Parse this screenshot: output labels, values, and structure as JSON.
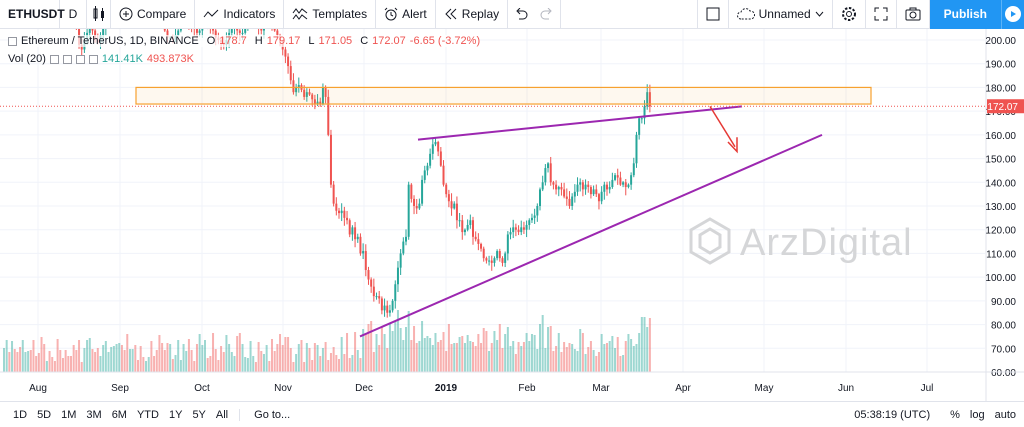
{
  "toolbar": {
    "symbol": "ETHUSDT",
    "interval": "D",
    "compare": "Compare",
    "indicators": "Indicators",
    "templates": "Templates",
    "alert": "Alert",
    "replay": "Replay",
    "layout_name": "Unnamed",
    "publish": "Publish"
  },
  "legend": {
    "title": "Ethereum / TetherUS, 1D, BINANCE",
    "open_label": "O",
    "open": "178.7",
    "high_label": "H",
    "high": "179.17",
    "low_label": "L",
    "low": "171.05",
    "close_label": "C",
    "close": "172.07",
    "change": "-6.65 (-3.72%)"
  },
  "volume_legend": {
    "label": "Vol (20)",
    "value1": "141.41K",
    "value2": "493.873K"
  },
  "watermark": "ArzDigital",
  "colors": {
    "up": "#26a69a",
    "down": "#ef5350",
    "trend": "#9c27b0",
    "zone": "#f7a12f",
    "arrow": "#e53935",
    "accent": "#2196f3"
  },
  "chart_data": {
    "type": "candlestick",
    "symbol": "ETHUSDT",
    "timeframe": "1D",
    "price_axis": {
      "min": 60,
      "max": 200,
      "ticks": [
        "200.00",
        "190.00",
        "180.00",
        "170.00",
        "160.00",
        "150.00",
        "140.00",
        "130.00",
        "120.00",
        "110.00",
        "100.00",
        "90.00",
        "80.00",
        "70.00",
        "60.00"
      ]
    },
    "last_price": "172.07",
    "time_axis": [
      "Aug",
      "Sep",
      "Oct",
      "Nov",
      "Dec",
      "2019",
      "Feb",
      "Mar",
      "Apr",
      "May",
      "Jun",
      "Jul"
    ],
    "closes": [
      280,
      284,
      281,
      283,
      280,
      278,
      276,
      279,
      282,
      285,
      283,
      279,
      274,
      270,
      262,
      258,
      260,
      257,
      255,
      252,
      250,
      245,
      240,
      232,
      226,
      220,
      212,
      205,
      198,
      196,
      200,
      203,
      206,
      204,
      200,
      199,
      202,
      205,
      209,
      212,
      212,
      214,
      220,
      226,
      221,
      218,
      216,
      220,
      224,
      223,
      221,
      219,
      217,
      220,
      221,
      219,
      216,
      214,
      211,
      207,
      204,
      201,
      201,
      200,
      202,
      204,
      206,
      208,
      209,
      207,
      206,
      205,
      203,
      204,
      207,
      209,
      206,
      205,
      204,
      201,
      200,
      199,
      198,
      200,
      203,
      205,
      206,
      204,
      203,
      203,
      206,
      208,
      210,
      212,
      209,
      205,
      204,
      206,
      208,
      207,
      206,
      204,
      202,
      199,
      196,
      193,
      189,
      183,
      178,
      180,
      181,
      179,
      176,
      178,
      177,
      175,
      173,
      174,
      173,
      180,
      176,
      160,
      139,
      131,
      128,
      127,
      128,
      125,
      124,
      118,
      121,
      116,
      117,
      110,
      111,
      103,
      99,
      96,
      92,
      92,
      91,
      86,
      88,
      85,
      86,
      90,
      97,
      104,
      110,
      115,
      117,
      139,
      133,
      130,
      129,
      131,
      141,
      145,
      147,
      152,
      156,
      157,
      153,
      147,
      139,
      135,
      132,
      129,
      131,
      124,
      124,
      119,
      120,
      122,
      124,
      117,
      116,
      114,
      112,
      108,
      107,
      107,
      106,
      108,
      111,
      108,
      106,
      110,
      118,
      119,
      121,
      120,
      119,
      121,
      120,
      122,
      124,
      125,
      126,
      130,
      137,
      140,
      146,
      148,
      140,
      139,
      137,
      138,
      137,
      134,
      133,
      130,
      134,
      136,
      139,
      140,
      137,
      139,
      138,
      135,
      137,
      135,
      132,
      136,
      139,
      137,
      138,
      141,
      143,
      142,
      139,
      140,
      138,
      139,
      143,
      148,
      160,
      167,
      167,
      172,
      178,
      172
    ],
    "volumes": [
      24,
      32,
      20,
      31,
      23,
      20,
      25,
      32,
      20,
      21,
      22,
      32,
      16,
      19,
      35,
      28,
      11,
      21,
      15,
      11,
      33,
      22,
      14,
      22,
      16,
      16,
      27,
      22,
      32,
      10,
      24,
      32,
      34,
      23,
      20,
      24,
      16,
      27,
      31,
      20,
      25,
      26,
      28,
      29,
      27,
      22,
      38,
      23,
      23,
      27,
      12,
      26,
      15,
      11,
      15,
      31,
      16,
      22,
      37,
      29,
      22,
      29,
      28,
      13,
      17,
      32,
      12,
      28,
      21,
      33,
      22,
      11,
      28,
      38,
      27,
      32,
      14,
      16,
      39,
      23,
      12,
      26,
      20,
      37,
      28,
      20,
      16,
      36,
      39,
      28,
      15,
      14,
      31,
      16,
      10,
      30,
      21,
      18,
      27,
      11,
      33,
      21,
      28,
      38,
      27,
      35,
      35,
      24,
      10,
      18,
      28,
      32,
      10,
      29,
      24,
      12,
      29,
      27,
      16,
      24,
      30,
      12,
      19,
      25,
      17,
      13,
      35,
      18,
      39,
      14,
      17,
      40,
      22,
      14,
      43,
      38,
      48,
      51,
      20,
      38,
      27,
      46,
      38,
      24,
      49,
      41,
      51,
      62,
      44,
      32,
      45,
      61,
      32,
      46,
      29,
      31,
      51,
      34,
      36,
      34,
      27,
      39,
      30,
      32,
      40,
      21,
      48,
      28,
      29,
      29,
      35,
      36,
      29,
      37,
      31,
      30,
      26,
      38,
      29,
      44,
      41,
      21,
      29,
      41,
      32,
      48,
      24,
      38,
      45,
      26,
      31,
      18,
      30,
      26,
      30,
      39,
      31,
      38,
      37,
      23,
      48,
      57,
      24,
      45,
      46,
      21,
      26,
      39,
      20,
      30,
      25,
      29,
      28,
      23,
      21,
      43,
      39,
      18,
      25,
      31,
      22,
      16,
      20,
      38,
      28,
      29,
      31,
      36,
      24,
      35,
      16,
      17,
      31,
      38,
      33,
      26,
      28,
      39,
      55,
      55,
      45,
      54
    ],
    "annotations": [
      {
        "type": "rectangle",
        "label": "resistance zone",
        "price_top": 180,
        "price_bottom": 173
      },
      {
        "type": "trendline",
        "label": "upper wedge line",
        "from": "Dec 2018 @ 158",
        "to": "Apr 2019 @ 172"
      },
      {
        "type": "trendline",
        "label": "lower wedge line",
        "from": "Dec 2018 @ 75",
        "to": "May 2019 @ 160"
      },
      {
        "type": "arrow",
        "label": "expected drop",
        "direction": "down"
      }
    ]
  },
  "bottom": {
    "ranges": [
      "1D",
      "5D",
      "1M",
      "3M",
      "6M",
      "YTD",
      "1Y",
      "5Y",
      "All"
    ],
    "goto": "Go to...",
    "clock": "05:38:19 (UTC)",
    "percent": "%",
    "log": "log",
    "auto": "auto"
  }
}
